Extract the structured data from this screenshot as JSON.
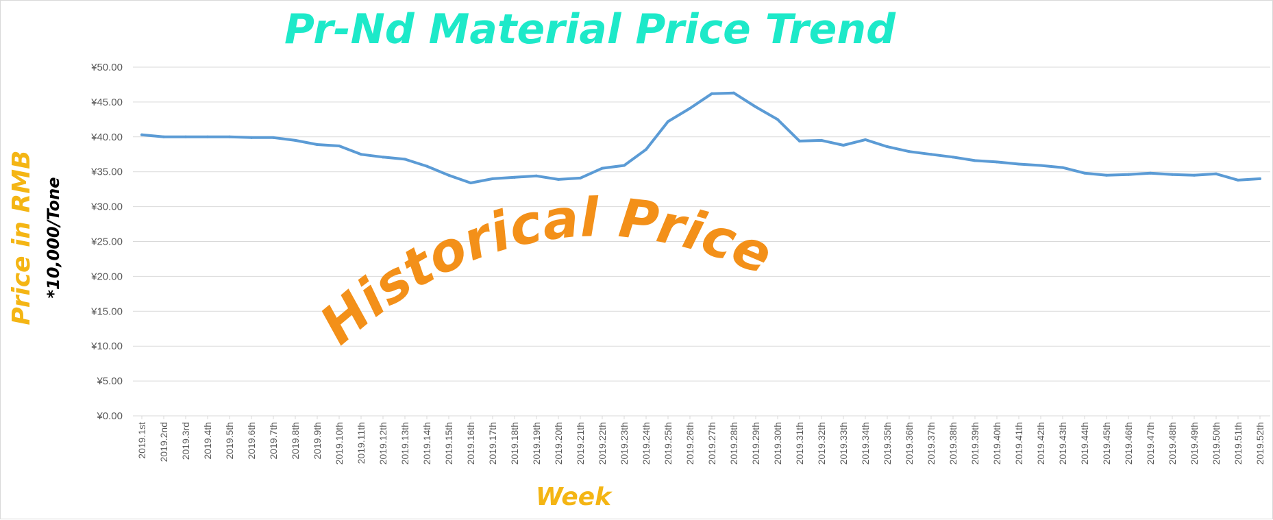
{
  "chart_data": {
    "type": "line",
    "title": "Pr-Nd Material Price Trend",
    "xlabel": "Week",
    "ylabel": "Price in RMB",
    "ylabel_unit": "*10,000/Tone",
    "annotation": "Historical Price",
    "ylim": [
      0,
      50
    ],
    "y_ticks": [
      "¥0.00",
      "¥5.00",
      "¥10.00",
      "¥15.00",
      "¥20.00",
      "¥25.00",
      "¥30.00",
      "¥35.00",
      "¥40.00",
      "¥45.00",
      "¥50.00"
    ],
    "grid": true,
    "legend": "none",
    "categories": [
      "2019.1st",
      "2019.2nd",
      "2019.3rd",
      "2019.4th",
      "2019.5th",
      "2019.6th",
      "2019.7th",
      "2019.8th",
      "2019.9th",
      "2019.10th",
      "2019.11th",
      "2019.12th",
      "2019.13th",
      "2019.14th",
      "2019.15th",
      "2019.16th",
      "2019.17th",
      "2019.18th",
      "2019.19th",
      "2019.20th",
      "2019.21th",
      "2019.22th",
      "2019.23th",
      "2019.24th",
      "2019.25th",
      "2019.26th",
      "2019.27th",
      "2019.28th",
      "2019.29th",
      "2019.30th",
      "2019.31th",
      "2019.32th",
      "2019.33th",
      "2019.34th",
      "2019.35th",
      "2019.36th",
      "2019.37th",
      "2019.38th",
      "2019.39th",
      "2019.40th",
      "2019.41th",
      "2019.42th",
      "2019.43th",
      "2019.44th",
      "2019.45th",
      "2019.46th",
      "2019.47th",
      "2019.48th",
      "2019.49th",
      "2019.50th",
      "2019.51th",
      "2019.52th"
    ],
    "series": [
      {
        "values": [
          40.3,
          40.0,
          40.0,
          40.0,
          40.0,
          39.9,
          39.9,
          39.5,
          38.9,
          38.7,
          37.5,
          37.1,
          36.8,
          35.8,
          34.5,
          33.4,
          34.0,
          34.2,
          34.4,
          33.9,
          34.1,
          35.5,
          35.9,
          38.2,
          42.2,
          44.1,
          46.2,
          46.3,
          44.3,
          42.5,
          39.4,
          39.5,
          38.8,
          39.6,
          38.6,
          37.9,
          37.5,
          37.1,
          36.6,
          36.4,
          36.1,
          35.9,
          35.6,
          34.8,
          34.5,
          34.6,
          34.8,
          34.6,
          34.5,
          34.7,
          33.8,
          34.0
        ]
      }
    ],
    "colors": {
      "line": "#5b9bd5",
      "title": "#1de9c9",
      "axis_title": "#f4b514",
      "annotation": "#f39019",
      "unit": "#000000",
      "grid": "#d9d9d9"
    }
  }
}
